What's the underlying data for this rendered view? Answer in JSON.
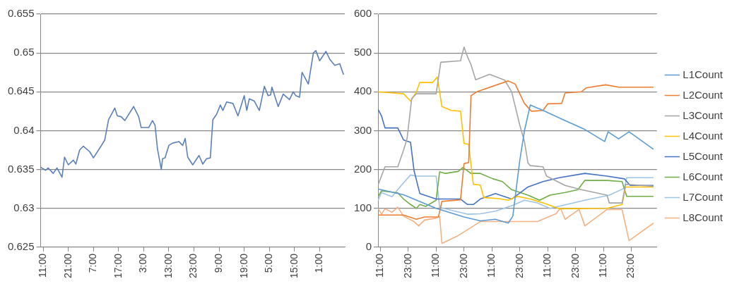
{
  "chart_data": [
    {
      "type": "line",
      "marker": "none",
      "grid": "y",
      "xlim": [
        "2000-01-01T10:00",
        "2000-01-06T11:00"
      ],
      "ylim": [
        0.625,
        0.655
      ],
      "yticks": [
        0.625,
        0.63,
        0.635,
        0.64,
        0.645,
        0.65,
        0.655
      ],
      "xticks": [
        {
          "value": "2000-01-01T11:00",
          "label": "11:00"
        },
        {
          "value": "2000-01-01T21:00",
          "label": "21:00"
        },
        {
          "value": "2000-01-02T07:00",
          "label": "7:00"
        },
        {
          "value": "2000-01-02T17:00",
          "label": "17:00"
        },
        {
          "value": "2000-01-03T03:00",
          "label": "3:00"
        },
        {
          "value": "2000-01-03T13:00",
          "label": "13:00"
        },
        {
          "value": "2000-01-03T23:00",
          "label": "23:00"
        },
        {
          "value": "2000-01-04T09:00",
          "label": "9:00"
        },
        {
          "value": "2000-01-04T19:00",
          "label": "19:00"
        },
        {
          "value": "2000-01-05T05:00",
          "label": "5:00"
        },
        {
          "value": "2000-01-05T15:00",
          "label": "15:00"
        },
        {
          "value": "2000-01-06T01:00",
          "label": "1:00"
        }
      ],
      "series": [
        {
          "color": "#5b7fb8",
          "x": [
            "2000-01-01T10:00",
            "2000-01-01T12:00",
            "2000-01-01T13:00",
            "2000-01-01T15:00",
            "2000-01-01T16:30",
            "2000-01-01T18:30",
            "2000-01-01T19:30",
            "2000-01-01T21:00",
            "2000-01-01T23:00",
            "2000-01-02T00:00",
            "2000-01-02T01:30",
            "2000-01-02T03:00",
            "2000-01-02T05:30",
            "2000-01-02T07:00",
            "2000-01-02T10:00",
            "2000-01-02T11:30",
            "2000-01-02T13:00",
            "2000-01-02T15:30",
            "2000-01-02T16:30",
            "2000-01-02T18:00",
            "2000-01-02T19:30",
            "2000-01-02T23:00",
            "2000-01-03T01:00",
            "2000-01-03T02:00",
            "2000-01-03T05:00",
            "2000-01-03T06:30",
            "2000-01-03T07:30",
            "2000-01-03T08:30",
            "2000-01-03T10:00",
            "2000-01-03T10:30",
            "2000-01-03T11:30",
            "2000-01-03T13:00",
            "2000-01-03T14:30",
            "2000-01-03T17:00",
            "2000-01-03T18:30",
            "2000-01-03T19:30",
            "2000-01-03T20:30",
            "2000-01-03T22:30",
            "2000-01-04T01:00",
            "2000-01-04T02:30",
            "2000-01-04T04:00",
            "2000-01-04T05:30",
            "2000-01-04T06:30",
            "2000-01-04T08:00",
            "2000-01-04T09:30",
            "2000-01-04T10:30",
            "2000-01-04T12:00",
            "2000-01-04T14:30",
            "2000-01-04T16:30",
            "2000-01-04T19:00",
            "2000-01-04T20:00",
            "2000-01-04T21:00",
            "2000-01-04T23:00",
            "2000-01-05T01:00",
            "2000-01-05T03:00",
            "2000-01-05T04:30",
            "2000-01-05T05:30",
            "2000-01-05T06:00",
            "2000-01-05T08:30",
            "2000-01-05T10:30",
            "2000-01-05T13:00",
            "2000-01-05T14:30",
            "2000-01-05T15:30",
            "2000-01-05T17:00",
            "2000-01-05T18:00",
            "2000-01-05T20:30",
            "2000-01-05T22:30",
            "2000-01-05T23:30",
            "2000-01-06T01:00",
            "2000-01-06T03:30",
            "2000-01-06T05:00",
            "2000-01-06T07:00",
            "2000-01-06T09:00",
            "2000-01-06T10:30"
          ],
          "values": [
            0.6353,
            0.6349,
            0.6352,
            0.6345,
            0.6352,
            0.634,
            0.6366,
            0.6356,
            0.6362,
            0.6357,
            0.6375,
            0.638,
            0.6373,
            0.6365,
            0.638,
            0.6388,
            0.6414,
            0.6429,
            0.6419,
            0.6418,
            0.6413,
            0.6431,
            0.6418,
            0.6404,
            0.6404,
            0.6413,
            0.6407,
            0.6376,
            0.635,
            0.6364,
            0.6365,
            0.6381,
            0.6384,
            0.6386,
            0.6381,
            0.639,
            0.6366,
            0.6356,
            0.6368,
            0.6357,
            0.6364,
            0.6365,
            0.6414,
            0.6421,
            0.6433,
            0.6426,
            0.6437,
            0.6435,
            0.6419,
            0.6445,
            0.6426,
            0.6441,
            0.6438,
            0.6426,
            0.6457,
            0.6445,
            0.6446,
            0.6456,
            0.6431,
            0.6447,
            0.644,
            0.645,
            0.6445,
            0.6443,
            0.6475,
            0.646,
            0.65,
            0.6503,
            0.649,
            0.6502,
            0.6492,
            0.6484,
            0.6486,
            0.6472
          ]
        }
      ]
    },
    {
      "type": "line",
      "marker": "none",
      "grid": "y",
      "legend": "right",
      "xlim": [
        "2000-01-01T10:00",
        "2000-01-06T10:00"
      ],
      "ylim": [
        0,
        600
      ],
      "yticks": [
        0,
        100,
        200,
        300,
        400,
        500,
        600
      ],
      "xticks": [
        {
          "value": "2000-01-01T11:00",
          "label": "11:00"
        },
        {
          "value": "2000-01-01T23:00",
          "label": "23:00"
        },
        {
          "value": "2000-01-02T11:00",
          "label": "11:00"
        },
        {
          "value": "2000-01-02T23:00",
          "label": "23:00"
        },
        {
          "value": "2000-01-03T11:00",
          "label": "11:00"
        },
        {
          "value": "2000-01-03T23:00",
          "label": "23:00"
        },
        {
          "value": "2000-01-04T11:00",
          "label": "11:00"
        },
        {
          "value": "2000-01-04T23:00",
          "label": "23:00"
        },
        {
          "value": "2000-01-05T11:00",
          "label": "11:00"
        },
        {
          "value": "2000-01-05T23:00",
          "label": "23:00"
        }
      ],
      "series": [
        {
          "name": "L1Count",
          "color": "#5b9bd5",
          "x": [
            "2000-01-01T10:00",
            "2000-01-01T21:00",
            "2000-01-02T11:00",
            "2000-01-02T23:00",
            "2000-01-03T06:00",
            "2000-01-03T12:30",
            "2000-01-03T18:00",
            "2000-01-03T20:00",
            "2000-01-03T23:00",
            "2000-01-04T01:00",
            "2000-01-04T03:30",
            "2000-01-04T09:00",
            "2000-01-04T17:00",
            "2000-01-05T03:00",
            "2000-01-05T11:30",
            "2000-01-05T13:00",
            "2000-01-05T17:30",
            "2000-01-05T22:00",
            "2000-01-06T08:30"
          ],
          "values": [
            150,
            135,
            100,
            78,
            68,
            72,
            62,
            80,
            224,
            300,
            366,
            352,
            330,
            303,
            272,
            297,
            279,
            297,
            252
          ]
        },
        {
          "name": "L2Count",
          "color": "#ed7d31",
          "x": [
            "2000-01-01T10:00",
            "2000-01-01T21:00",
            "2000-01-02T02:30",
            "2000-01-02T06:00",
            "2000-01-02T12:00",
            "2000-01-02T13:30",
            "2000-01-02T21:30",
            "2000-01-02T23:00",
            "2000-01-03T01:00",
            "2000-01-03T02:00",
            "2000-01-03T04:30",
            "2000-01-03T18:00",
            "2000-01-03T21:00",
            "2000-01-04T01:00",
            "2000-01-04T04:00",
            "2000-01-04T09:00",
            "2000-01-04T11:00",
            "2000-01-04T17:00",
            "2000-01-04T18:30",
            "2000-01-05T01:30",
            "2000-01-05T03:30",
            "2000-01-05T12:00",
            "2000-01-05T17:30",
            "2000-01-06T08:30"
          ],
          "values": [
            83,
            83,
            72,
            78,
            78,
            118,
            122,
            215,
            218,
            390,
            400,
            428,
            420,
            370,
            350,
            352,
            369,
            370,
            397,
            400,
            410,
            418,
            412,
            412
          ]
        },
        {
          "name": "L3Count",
          "color": "#a5a5a5",
          "x": [
            "2000-01-01T10:00",
            "2000-01-01T13:00",
            "2000-01-01T18:30",
            "2000-01-01T21:00",
            "2000-01-01T22:30",
            "2000-01-02T00:30",
            "2000-01-02T02:30",
            "2000-01-02T11:00",
            "2000-01-02T13:00",
            "2000-01-02T21:30",
            "2000-01-02T23:00",
            "2000-01-03T00:30",
            "2000-01-03T02:00",
            "2000-01-03T04:00",
            "2000-01-03T10:00",
            "2000-01-03T16:30",
            "2000-01-03T19:30",
            "2000-01-03T23:00",
            "2000-01-04T01:00",
            "2000-01-04T02:30",
            "2000-01-04T03:30",
            "2000-01-04T09:00",
            "2000-01-04T10:30",
            "2000-01-04T18:30",
            "2000-01-05T01:30",
            "2000-01-05T12:30",
            "2000-01-05T13:30",
            "2000-01-05T19:00",
            "2000-01-05T20:30",
            "2000-01-06T08:30"
          ],
          "values": [
            160,
            207,
            207,
            250,
            280,
            383,
            395,
            395,
            476,
            480,
            515,
            490,
            470,
            431,
            445,
            430,
            400,
            314,
            272,
            217,
            210,
            207,
            183,
            159,
            148,
            134,
            114,
            114,
            162,
            157
          ]
        },
        {
          "name": "L4Count",
          "color": "#ffc000",
          "x": [
            "2000-01-01T10:00",
            "2000-01-01T21:00",
            "2000-01-02T00:00",
            "2000-01-02T02:30",
            "2000-01-02T04:00",
            "2000-01-02T09:30",
            "2000-01-02T11:30",
            "2000-01-02T13:30",
            "2000-01-02T17:30",
            "2000-01-02T21:30",
            "2000-01-02T23:00",
            "2000-01-03T01:00",
            "2000-01-03T03:00",
            "2000-01-03T06:00",
            "2000-01-03T07:30",
            "2000-01-03T14:00",
            "2000-01-03T18:00",
            "2000-01-03T22:00",
            "2000-01-04T03:30",
            "2000-01-04T09:00",
            "2000-01-04T16:00",
            "2000-01-05T12:30",
            "2000-01-05T19:00",
            "2000-01-05T20:30",
            "2000-01-06T08:30"
          ],
          "values": [
            400,
            395,
            376,
            400,
            424,
            424,
            438,
            362,
            352,
            350,
            267,
            265,
            162,
            160,
            128,
            125,
            121,
            131,
            124,
            114,
            99,
            100,
            110,
            155,
            155
          ]
        },
        {
          "name": "L5Count",
          "color": "#4472c4",
          "x": [
            "2000-01-01T10:00",
            "2000-01-01T11:30",
            "2000-01-01T13:00",
            "2000-01-01T18:30",
            "2000-01-01T21:00",
            "2000-01-02T00:00",
            "2000-01-02T01:30",
            "2000-01-02T04:00",
            "2000-01-02T08:00",
            "2000-01-02T11:00",
            "2000-01-02T21:30",
            "2000-01-03T00:30",
            "2000-01-03T03:00",
            "2000-01-03T06:00",
            "2000-01-03T12:30",
            "2000-01-03T19:30",
            "2000-01-04T02:30",
            "2000-01-04T09:00",
            "2000-01-04T16:00",
            "2000-01-05T03:00",
            "2000-01-05T12:30",
            "2000-01-05T20:00",
            "2000-01-05T22:30",
            "2000-01-06T08:30"
          ],
          "values": [
            355,
            338,
            307,
            307,
            276,
            270,
            197,
            138,
            130,
            124,
            124,
            110,
            110,
            124,
            138,
            124,
            155,
            169,
            179,
            190,
            183,
            176,
            159,
            159
          ]
        },
        {
          "name": "L6Count",
          "color": "#70ad47",
          "x": [
            "2000-01-01T10:00",
            "2000-01-01T11:30",
            "2000-01-01T18:30",
            "2000-01-01T21:00",
            "2000-01-02T00:00",
            "2000-01-02T02:30",
            "2000-01-02T04:00",
            "2000-01-02T06:30",
            "2000-01-02T11:00",
            "2000-01-02T12:30",
            "2000-01-02T15:00",
            "2000-01-02T20:30",
            "2000-01-02T22:30",
            "2000-01-03T02:00",
            "2000-01-03T06:00",
            "2000-01-03T11:30",
            "2000-01-03T15:30",
            "2000-01-03T19:30",
            "2000-01-04T02:30",
            "2000-01-04T07:30",
            "2000-01-04T12:00",
            "2000-01-04T18:30",
            "2000-01-05T00:00",
            "2000-01-05T03:00",
            "2000-01-05T12:30",
            "2000-01-05T19:00",
            "2000-01-05T21:00",
            "2000-01-06T08:30"
          ],
          "values": [
            130,
            145,
            140,
            124,
            110,
            100,
            110,
            105,
            121,
            194,
            190,
            195,
            205,
            190,
            190,
            176,
            169,
            148,
            134,
            121,
            134,
            141,
            148,
            172,
            172,
            169,
            131,
            131
          ]
        },
        {
          "name": "L7Count",
          "color": "#9dc3e6",
          "x": [
            "2000-01-01T10:00",
            "2000-01-01T11:30",
            "2000-01-01T16:00",
            "2000-01-01T20:00",
            "2000-01-02T00:00",
            "2000-01-02T02:30",
            "2000-01-02T11:00",
            "2000-01-02T12:30",
            "2000-01-02T17:30",
            "2000-01-03T00:30",
            "2000-01-03T06:00",
            "2000-01-03T12:30",
            "2000-01-03T19:30",
            "2000-01-04T01:00",
            "2000-01-04T06:30",
            "2000-01-04T12:00",
            "2000-01-05T03:00",
            "2000-01-05T13:30",
            "2000-01-05T20:00",
            "2000-01-05T21:00",
            "2000-01-06T08:30"
          ],
          "values": [
            120,
            141,
            130,
            159,
            186,
            183,
            183,
            103,
            95,
            85,
            86,
            93,
            107,
            121,
            114,
            100,
            121,
            134,
            152,
            179,
            179
          ]
        },
        {
          "name": "L8Count",
          "color": "#f4b183",
          "x": [
            "2000-01-01T10:00",
            "2000-01-01T11:30",
            "2000-01-01T13:00",
            "2000-01-01T16:00",
            "2000-01-01T18:30",
            "2000-01-01T21:00",
            "2000-01-02T01:30",
            "2000-01-02T03:30",
            "2000-01-02T06:00",
            "2000-01-02T11:00",
            "2000-01-02T12:30",
            "2000-01-02T13:30",
            "2000-01-02T20:30",
            "2000-01-03T00:30",
            "2000-01-03T06:00",
            "2000-01-04T06:30",
            "2000-01-04T14:30",
            "2000-01-04T16:30",
            "2000-01-04T18:30",
            "2000-01-05T00:30",
            "2000-01-05T03:00",
            "2000-01-05T12:30",
            "2000-01-05T19:00",
            "2000-01-05T22:00",
            "2000-01-06T08:30"
          ],
          "values": [
            100,
            85,
            99,
            90,
            103,
            80,
            66,
            55,
            70,
            75,
            79,
            10,
            30,
            45,
            66,
            66,
            86,
            100,
            72,
            97,
            55,
            97,
            97,
            17,
            62
          ]
        }
      ]
    }
  ]
}
